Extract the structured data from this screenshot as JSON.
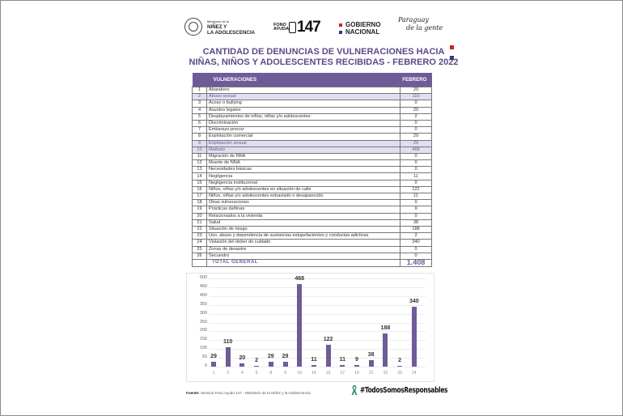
{
  "header": {
    "ministry": {
      "small": "Ministerio de la",
      "line1": "NIÑEZ Y",
      "line2": "LA ADOLESCENCIA"
    },
    "fono": {
      "line1": "FONO",
      "line2": "AYUDA",
      "number": "147"
    },
    "gobierno": {
      "line1": "GOBIERNO",
      "line2": "NACIONAL"
    },
    "slogan": {
      "line1": "Paraguay",
      "line2": "de la gente"
    }
  },
  "title": {
    "line1": "CANTIDAD DE DENUNCIAS DE  VULNERACIONES HACIA",
    "line2": "NIÑAS, NIÑOS Y ADOLESCENTES RECIBIDAS - FEBRERO 2022"
  },
  "colors": {
    "accent": "#6e5c98",
    "highlight": "#e3ddf0",
    "flag_red": "#d0202e",
    "flag_blue": "#2b3a80",
    "ribbon": "#2e8b6a"
  },
  "table": {
    "headers": {
      "name": "VULNERACIONES",
      "value": "FEBRERO"
    },
    "rows": [
      {
        "n": "1",
        "name": "Abandono",
        "value": "29"
      },
      {
        "n": "2",
        "name": "Abuso sexual",
        "value": "110",
        "highlight": true
      },
      {
        "n": "3",
        "name": "Acoso o bullying",
        "value": "0"
      },
      {
        "n": "4",
        "name": "Asuntos legales",
        "value": "20"
      },
      {
        "n": "5",
        "name": "Desplazamientos de niños, niñas y/o adolescentes",
        "value": "2"
      },
      {
        "n": "6",
        "name": "Discriminación",
        "value": "0"
      },
      {
        "n": "7",
        "name": "Embarazo precoz",
        "value": "0"
      },
      {
        "n": "8",
        "name": "Explotación comercial",
        "value": "29"
      },
      {
        "n": "9",
        "name": "Explotación sexual",
        "value": "29",
        "highlight": true
      },
      {
        "n": "10",
        "name": "Maltrato",
        "value": "468",
        "highlight": true
      },
      {
        "n": "11",
        "name": "Migración de NNA",
        "value": "0"
      },
      {
        "n": "12",
        "name": "Muerte de NNA",
        "value": "0"
      },
      {
        "n": "13",
        "name": "Necesidades básicas",
        "value": "0"
      },
      {
        "n": "14",
        "name": "Negligencia",
        "value": "11"
      },
      {
        "n": "15",
        "name": "Negligencia institucional",
        "value": "0"
      },
      {
        "n": "16",
        "name": "Niños, niñas y/o adolescentes en situación de calle",
        "value": "122"
      },
      {
        "n": "17",
        "name": "Niños, niñas y/o adolescentes extraviado o desaparecido",
        "value": "11"
      },
      {
        "n": "18",
        "name": "Otras vulneraciones",
        "value": "0"
      },
      {
        "n": "19",
        "name": "Prácticas dañinas",
        "value": "9"
      },
      {
        "n": "20",
        "name": "Relacionados a la vivienda",
        "value": "0"
      },
      {
        "n": "21",
        "name": "Salud",
        "value": "38"
      },
      {
        "n": "22",
        "name": "Situación de riesgo",
        "value": "188"
      },
      {
        "n": "23",
        "name": "Uso, abuso y dependencia de sustancias estupefacientes y conductas adictivas",
        "value": "2"
      },
      {
        "n": "24",
        "name": "Violación del deber de cuidado",
        "value": "340"
      },
      {
        "n": "25",
        "name": "Zonas de desastre",
        "value": "0"
      },
      {
        "n": "26",
        "name": "Secuestro",
        "value": "0"
      }
    ],
    "total": {
      "label": "TOTAL GENERAL",
      "value": "1.408"
    }
  },
  "chart_data": {
    "type": "bar",
    "title": "",
    "xlabel": "",
    "ylabel": "",
    "categories": [
      "1",
      "2",
      "4",
      "5",
      "8",
      "9",
      "10",
      "14",
      "16",
      "17",
      "19",
      "21",
      "22",
      "23",
      "24"
    ],
    "values": [
      29,
      110,
      20,
      2,
      29,
      29,
      468,
      11,
      122,
      11,
      9,
      38,
      188,
      2,
      340
    ],
    "ylim": [
      0,
      500
    ],
    "yticks": [
      0,
      50,
      100,
      150,
      200,
      250,
      300,
      350,
      400,
      450,
      500
    ],
    "grid": true,
    "legend": "none",
    "bar_color": "#6e5c98",
    "data_labels": true
  },
  "footer": {
    "source_label": "Fuente:",
    "source_text": " Servicio Fono Ayuda 147 - Ministerio de la Niñez y la Adolescencia",
    "hashtag": "#TodosSomosResponsables"
  }
}
